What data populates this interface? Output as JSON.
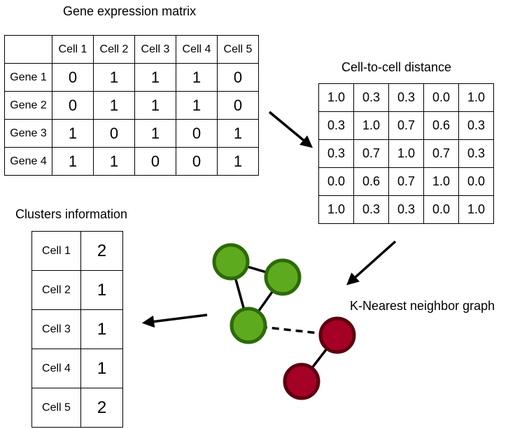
{
  "expression_matrix": {
    "title": "Gene expression matrix",
    "columns": [
      "Cell 1",
      "Cell 2",
      "Cell 3",
      "Cell 4",
      "Cell 5"
    ],
    "rows": [
      {
        "label": "Gene 1",
        "values": [
          "0",
          "1",
          "1",
          "1",
          "0"
        ]
      },
      {
        "label": "Gene 2",
        "values": [
          "0",
          "1",
          "1",
          "1",
          "0"
        ]
      },
      {
        "label": "Gene 3",
        "values": [
          "1",
          "0",
          "1",
          "0",
          "1"
        ]
      },
      {
        "label": "Gene 4",
        "values": [
          "1",
          "1",
          "0",
          "0",
          "1"
        ]
      }
    ]
  },
  "distance_matrix": {
    "title": "Cell-to-cell distance",
    "rows": [
      [
        "1.0",
        "0.3",
        "0.3",
        "0.0",
        "1.0"
      ],
      [
        "0.3",
        "1.0",
        "0.7",
        "0.6",
        "0.3"
      ],
      [
        "0.3",
        "0.7",
        "1.0",
        "0.7",
        "0.3"
      ],
      [
        "0.0",
        "0.6",
        "0.7",
        "1.0",
        "0.0"
      ],
      [
        "1.0",
        "0.3",
        "0.3",
        "0.0",
        "1.0"
      ]
    ]
  },
  "graph": {
    "title": "K-Nearest neighbor graph",
    "colors": {
      "cluster_a_fill": "#5eaa1e",
      "cluster_a_stroke": "#2d6a0a",
      "cluster_b_fill": "#a50026",
      "cluster_b_stroke": "#5c0010"
    }
  },
  "clusters": {
    "title": "Clusters information",
    "rows": [
      {
        "cell": "Cell 1",
        "cluster": "2"
      },
      {
        "cell": "Cell 2",
        "cluster": "1"
      },
      {
        "cell": "Cell 3",
        "cluster": "1"
      },
      {
        "cell": "Cell 4",
        "cluster": "1"
      },
      {
        "cell": "Cell 5",
        "cluster": "2"
      }
    ]
  }
}
